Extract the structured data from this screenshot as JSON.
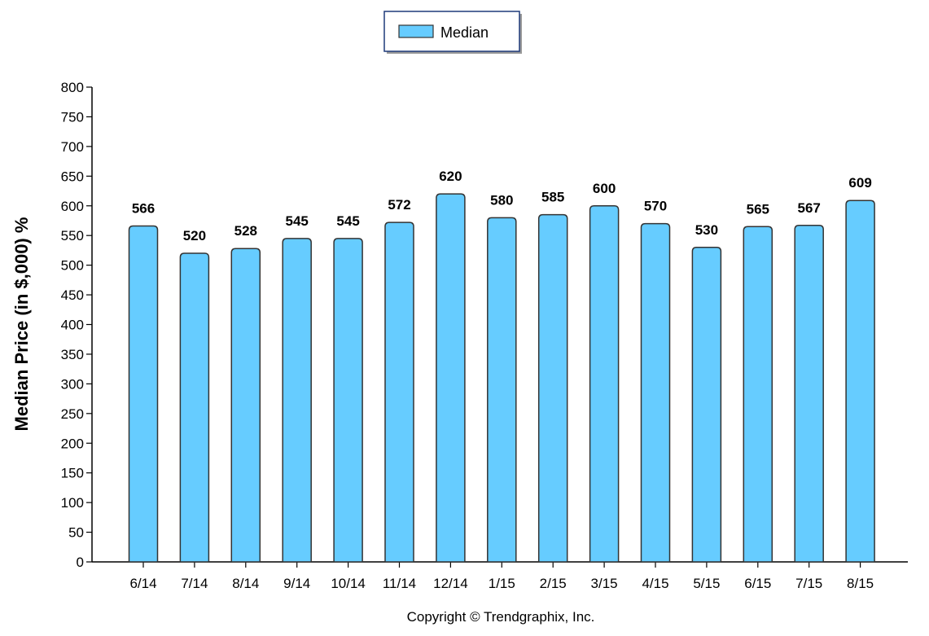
{
  "colors": {
    "bar_fill": "#66CCFF",
    "bar_stroke": "#333333",
    "axis": "#000000",
    "legend_border": "#1F3A7A"
  },
  "legend": {
    "items": [
      {
        "label": "Median"
      }
    ],
    "placement": "top-center"
  },
  "footer": {
    "copyright": "Copyright © Trendgraphix, Inc."
  },
  "chart_data": {
    "type": "bar",
    "title": "",
    "xlabel": "",
    "ylabel": "Median Price (in $,000) %",
    "ylim": [
      0,
      800
    ],
    "ytick_step": 50,
    "grid": false,
    "categories": [
      "6/14",
      "7/14",
      "8/14",
      "9/14",
      "10/14",
      "11/14",
      "12/14",
      "1/15",
      "2/15",
      "3/15",
      "4/15",
      "5/15",
      "6/15",
      "7/15",
      "8/15"
    ],
    "series": [
      {
        "name": "Median",
        "values": [
          566,
          520,
          528,
          545,
          545,
          572,
          620,
          580,
          585,
          600,
          570,
          530,
          565,
          567,
          609
        ],
        "data_labels": [
          "566",
          "520",
          "528",
          "545",
          "545",
          "572",
          "620",
          "580",
          "585",
          "600",
          "570",
          "530",
          "565",
          "567",
          "609"
        ]
      }
    ]
  }
}
